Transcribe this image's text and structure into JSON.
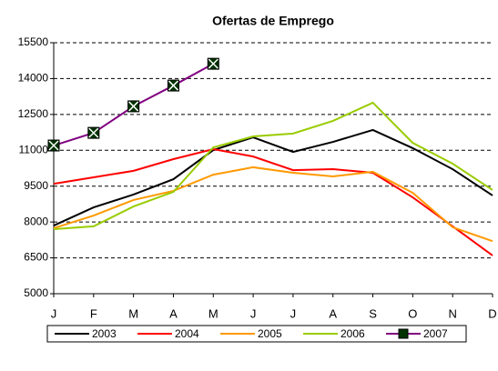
{
  "chart_data": {
    "type": "line",
    "title": "Ofertas de Emprego",
    "categories": [
      "J",
      "F",
      "M",
      "A",
      "M",
      "J",
      "J",
      "A",
      "S",
      "O",
      "N",
      "D"
    ],
    "series": [
      {
        "name": "2003",
        "color": "#000000",
        "values": [
          7850,
          8610,
          9150,
          9790,
          11010,
          11540,
          10930,
          11350,
          11850,
          11090,
          10210,
          9110
        ]
      },
      {
        "name": "2004",
        "color": "#ff0000",
        "values": [
          9600,
          9870,
          10140,
          10630,
          11050,
          10740,
          10170,
          10210,
          10060,
          9030,
          7820,
          6600
        ]
      },
      {
        "name": "2005",
        "color": "#ff9900",
        "values": [
          7740,
          8270,
          8920,
          9300,
          9980,
          10290,
          10060,
          9910,
          10100,
          9220,
          7780,
          7200
        ]
      },
      {
        "name": "2006",
        "color": "#99cc00",
        "values": [
          7700,
          7820,
          8650,
          9260,
          11120,
          11580,
          11700,
          12230,
          12990,
          11310,
          10440,
          9340
        ]
      },
      {
        "name": "2007",
        "color": "#800080",
        "values": [
          11200,
          11730,
          12840,
          13710,
          14620,
          null,
          null,
          null,
          null,
          null,
          null,
          null
        ]
      }
    ],
    "ylim": [
      5000,
      15500
    ],
    "yticks": [
      5000,
      6500,
      8000,
      9500,
      11000,
      12500,
      14000,
      15500
    ],
    "grid": true
  }
}
